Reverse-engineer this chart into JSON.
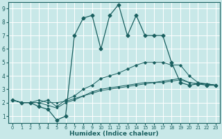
{
  "xlabel": "Humidex (Indice chaleur)",
  "bg_color": "#c8e8e8",
  "grid_color": "#ffffff",
  "line_color": "#1a6060",
  "xlim": [
    -0.5,
    23.5
  ],
  "ylim": [
    0.5,
    9.5
  ],
  "xticks": [
    0,
    1,
    2,
    3,
    4,
    5,
    6,
    7,
    8,
    9,
    10,
    11,
    12,
    13,
    14,
    15,
    16,
    17,
    18,
    19,
    20,
    21,
    22,
    23
  ],
  "yticks": [
    1,
    2,
    3,
    4,
    5,
    6,
    7,
    8,
    9
  ],
  "line_wavy_x": [
    0,
    1,
    2,
    3,
    4,
    5,
    6,
    7,
    8,
    9,
    10,
    11,
    12,
    13,
    14,
    15,
    16,
    17,
    18,
    19,
    20,
    21,
    22,
    23
  ],
  "line_wavy_y": [
    2.2,
    2.0,
    2.0,
    1.7,
    1.5,
    0.7,
    1.0,
    7.0,
    8.3,
    8.5,
    6.0,
    8.5,
    9.3,
    7.0,
    8.5,
    7.0,
    7.0,
    7.0,
    5.0,
    3.5,
    3.3,
    3.4,
    3.3,
    3.3
  ],
  "line_flat1_x": [
    0,
    1,
    2,
    3,
    4,
    5,
    6,
    7,
    8,
    9,
    10,
    11,
    12,
    13,
    14,
    15,
    16,
    17,
    18,
    19,
    20,
    21,
    22,
    23
  ],
  "line_flat1_y": [
    2.2,
    2.0,
    2.0,
    2.2,
    2.0,
    2.0,
    2.1,
    2.3,
    2.5,
    2.7,
    2.9,
    3.0,
    3.1,
    3.2,
    3.3,
    3.4,
    3.5,
    3.5,
    3.6,
    3.7,
    3.5,
    3.4,
    3.4,
    3.3
  ],
  "line_flat2_x": [
    0,
    1,
    2,
    3,
    4,
    5,
    6,
    7,
    8,
    9,
    10,
    11,
    12,
    13,
    14,
    15,
    16,
    17,
    18,
    19,
    20,
    21,
    22,
    23
  ],
  "line_flat2_y": [
    2.2,
    2.0,
    2.0,
    2.0,
    1.8,
    1.6,
    2.0,
    2.2,
    2.5,
    2.8,
    3.0,
    3.1,
    3.2,
    3.3,
    3.4,
    3.5,
    3.5,
    3.6,
    3.7,
    3.8,
    3.5,
    3.4,
    3.4,
    3.3
  ],
  "line_flat3_x": [
    0,
    1,
    2,
    3,
    4,
    5,
    6,
    7,
    8,
    9,
    10,
    11,
    12,
    13,
    14,
    15,
    16,
    17,
    18,
    19,
    20,
    21,
    22,
    23
  ],
  "line_flat3_y": [
    2.2,
    2.0,
    2.0,
    2.0,
    2.2,
    1.7,
    2.2,
    2.5,
    3.0,
    3.3,
    3.8,
    4.0,
    4.2,
    4.5,
    4.8,
    5.0,
    5.0,
    5.0,
    4.8,
    4.8,
    4.0,
    3.5,
    3.4,
    3.3
  ]
}
